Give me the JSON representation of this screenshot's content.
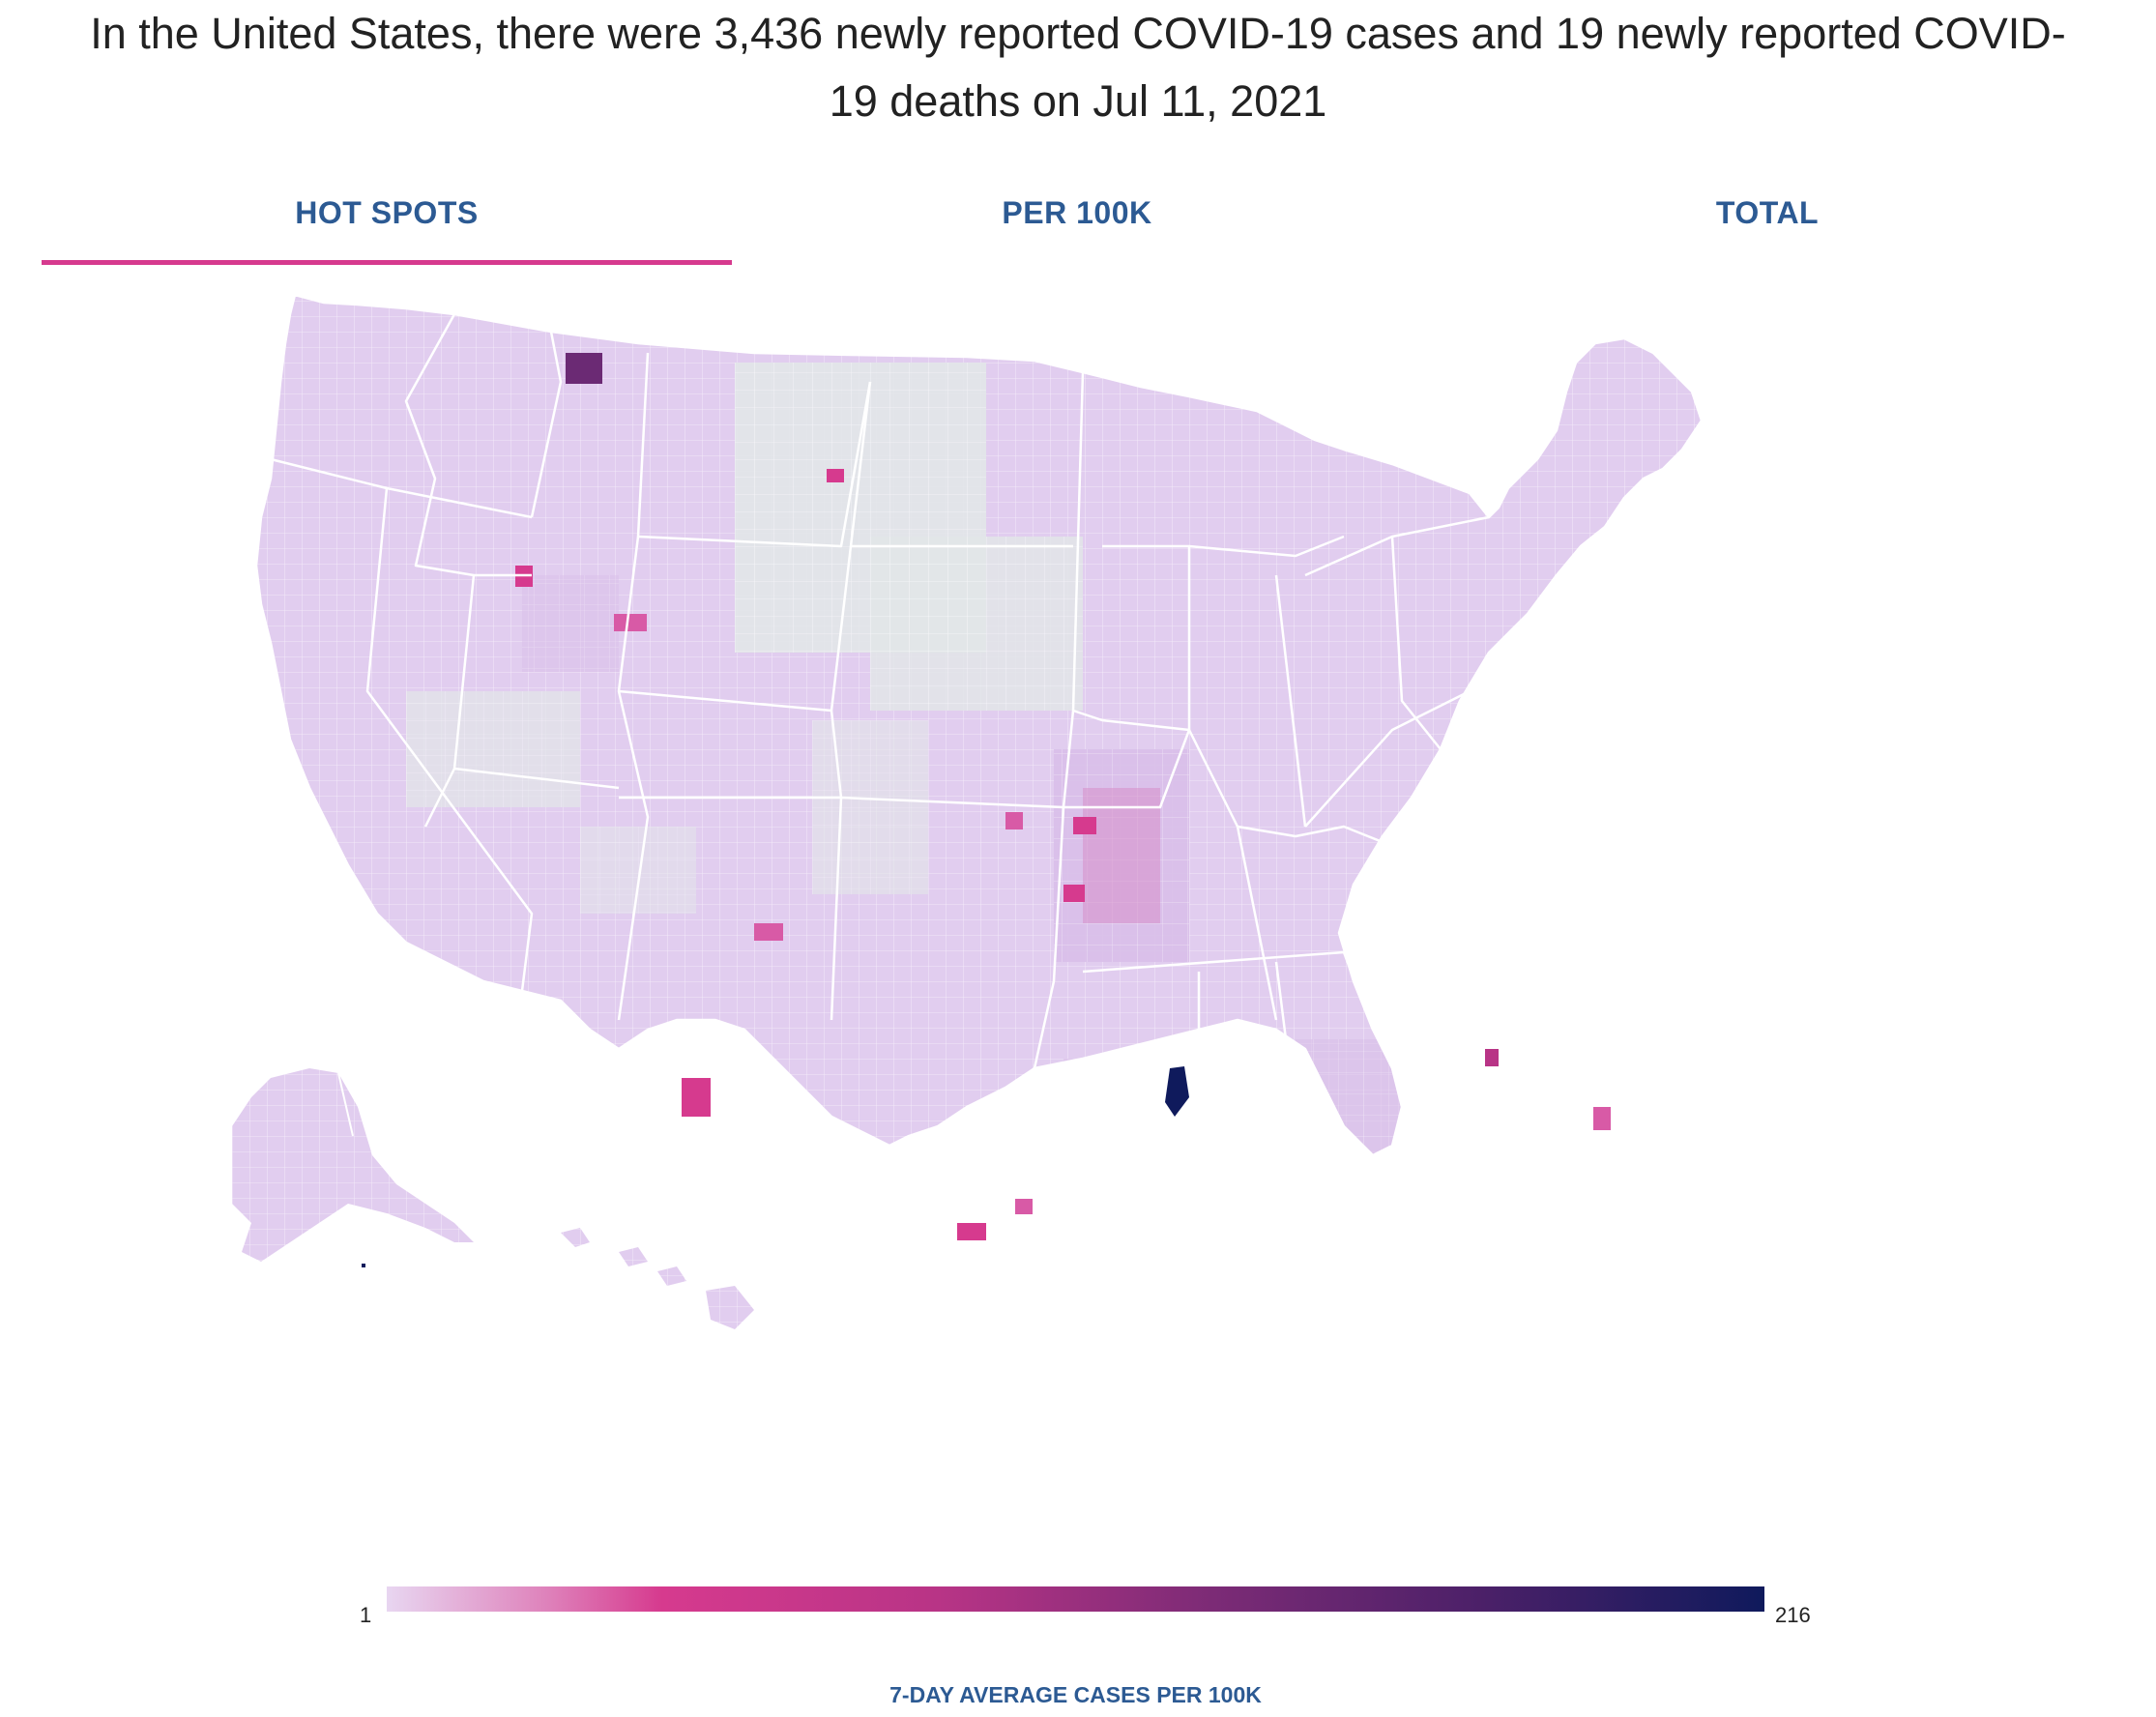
{
  "headline": "In the United States, there were 3,436 newly reported COVID-19 cases and 19 newly reported COVID-19 deaths on Jul 11, 2021",
  "tabs": [
    {
      "label": "HOT SPOTS",
      "active": true
    },
    {
      "label": "PER 100K",
      "active": false
    },
    {
      "label": "TOTAL",
      "active": false
    }
  ],
  "legend": {
    "min": "1",
    "max": "216",
    "title": "7-DAY AVERAGE CASES PER 100K",
    "colors": [
      "#e8d6f1",
      "#de7fb9",
      "#d63a8e",
      "#b83486",
      "#7c2b76",
      "#4a2068",
      "#0f1a5c"
    ]
  },
  "map": {
    "base_fill": "#e3d3f0",
    "no_data_fill": "#e2e6e8",
    "border_color": "#ffffff",
    "accent": "#d63a8e"
  }
}
